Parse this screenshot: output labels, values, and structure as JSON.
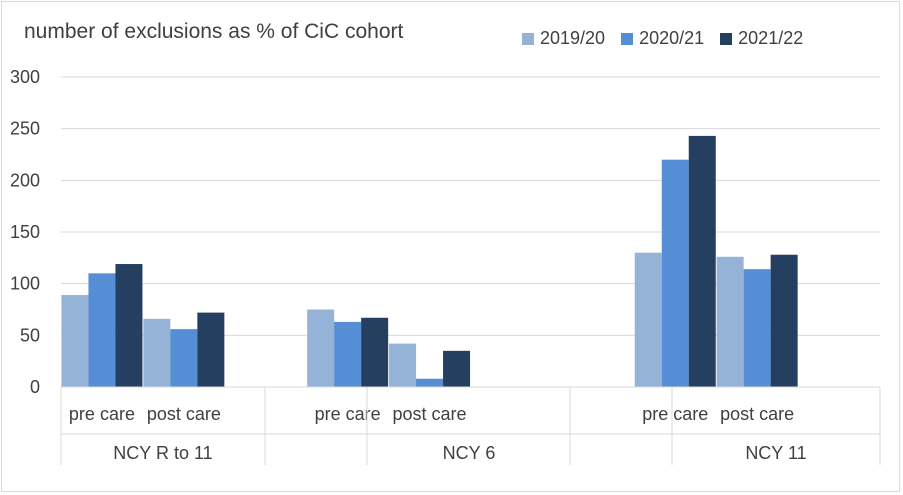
{
  "chart_data": {
    "type": "bar",
    "title": "number of exclusions as % of CiC cohort",
    "xlabel": "",
    "ylabel": "",
    "ylim": [
      0,
      300
    ],
    "yticks": [
      "0",
      "50",
      "100",
      "150",
      "200",
      "250",
      "300"
    ],
    "grid": true,
    "legend_position": "top-right",
    "groups": [
      {
        "label": "NCY R to 11",
        "categories": [
          "pre care",
          "post care"
        ]
      },
      {
        "label": "NCY 6",
        "categories": [
          "pre care",
          "post care"
        ]
      },
      {
        "label": "NCY 11",
        "categories": [
          "pre care",
          "post care"
        ]
      }
    ],
    "categories": [
      "pre care",
      "post care",
      "pre care",
      "post care",
      "pre care",
      "post care"
    ],
    "series": [
      {
        "name": "2019/20",
        "color": "#95b3d7",
        "values": [
          89,
          66,
          75,
          42,
          130,
          126
        ]
      },
      {
        "name": "2020/21",
        "color": "#558ed5",
        "values": [
          110,
          56,
          63,
          8,
          220,
          114
        ]
      },
      {
        "name": "2021/22",
        "color": "#243f60",
        "values": [
          119,
          72,
          67,
          35,
          243,
          128
        ]
      }
    ]
  }
}
